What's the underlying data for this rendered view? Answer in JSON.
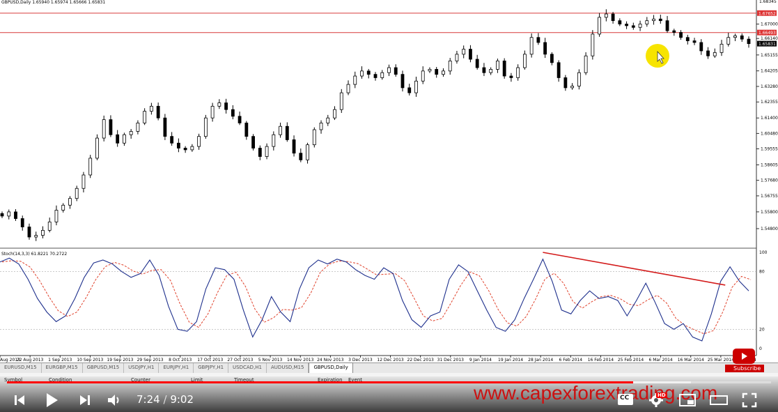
{
  "chart_title": "GBPUSD,Daily  1.65940 1.65974 1.65666 1.65831",
  "indicator_label": "Stoch(14,3,3) 61.8221 70.2722",
  "colors": {
    "bull": "#000000",
    "bear": "#000000",
    "main_line": "#1d2f8c",
    "signal_line": "#e0402a",
    "hline": "#d83a3a",
    "trendline": "#d31b1b",
    "price_tag_red": "#d33",
    "price_tag_current": "#000000",
    "cursor_highlight": "#f7e400"
  },
  "chart_data": {
    "type": "candlestick",
    "ohlc_anchor_closes": [
      1.5555,
      1.558,
      1.554,
      1.549,
      1.543,
      1.544,
      1.547,
      1.552,
      1.559,
      1.562,
      1.566,
      1.572,
      1.58,
      1.59,
      1.602,
      1.613,
      1.604,
      1.599,
      1.604,
      1.606,
      1.611,
      1.618,
      1.621,
      1.614,
      1.603,
      1.599,
      1.596,
      1.595,
      1.597,
      1.603,
      1.614,
      1.621,
      1.623,
      1.619,
      1.615,
      1.611,
      1.603,
      1.596,
      1.591,
      1.597,
      1.604,
      1.609,
      1.601,
      1.593,
      1.589,
      1.598,
      1.607,
      1.611,
      1.614,
      1.619,
      1.629,
      1.634,
      1.639,
      1.642,
      1.64,
      1.638,
      1.641,
      1.644,
      1.64,
      1.632,
      1.629,
      1.636,
      1.642,
      1.643,
      1.64,
      1.642,
      1.648,
      1.652,
      1.655,
      1.649,
      1.644,
      1.641,
      1.643,
      1.648,
      1.639,
      1.638,
      1.644,
      1.652,
      1.662,
      1.659,
      1.652,
      1.647,
      1.638,
      1.632,
      1.633,
      1.641,
      1.651,
      1.664,
      1.674,
      1.676,
      1.672,
      1.67,
      1.669,
      1.668,
      1.67,
      1.672,
      1.673,
      1.672,
      1.666,
      1.665,
      1.662,
      1.66,
      1.659,
      1.654,
      1.651,
      1.653,
      1.658,
      1.662,
      1.663,
      1.661,
      1.6583
    ],
    "price_ticks": [
      "1.67000",
      "1.66140",
      "1.65155",
      "1.64205",
      "1.63280",
      "1.62355",
      "1.61400",
      "1.60480",
      "1.59555",
      "1.58605",
      "1.57680",
      "1.56755",
      "1.55800",
      "1.54800"
    ],
    "price_tag_top": "1.67652",
    "price_tag_mid": "1.66493",
    "price_tag_current": "1.65831",
    "top_edge_label": "1.68345",
    "hlines": [
      1.6765,
      1.6649
    ],
    "date_labels": [
      "Aug 2013",
      "22 Aug 2013",
      "1 Sep 2013",
      "10 Sep 2013",
      "19 Sep 2013",
      "29 Sep 2013",
      "8 Oct 2013",
      "17 Oct 2013",
      "27 Oct 2013",
      "5 Nov 2013",
      "14 Nov 2013",
      "24 Nov 2013",
      "3 Dec 2013",
      "12 Dec 2013",
      "22 Dec 2013",
      "31 Dec 2013",
      "9 Jan 2014",
      "19 Jan 2014",
      "28 Jan 2014",
      "6 Feb 2014",
      "16 Feb 2014",
      "25 Feb 2014",
      "6 Mar 2014",
      "16 Mar 2014",
      "25 Mar 2014",
      "2014"
    ],
    "stoch_ticks": [
      "100",
      "80",
      "20",
      "0"
    ],
    "stoch_main": [
      90,
      94,
      88,
      72,
      52,
      38,
      28,
      34,
      52,
      74,
      89,
      92,
      88,
      80,
      74,
      78,
      92,
      76,
      44,
      20,
      18,
      28,
      62,
      84,
      82,
      72,
      40,
      12,
      30,
      54,
      38,
      28,
      62,
      84,
      92,
      88,
      93,
      90,
      82,
      76,
      72,
      84,
      78,
      50,
      30,
      22,
      34,
      38,
      72,
      87,
      80,
      60,
      40,
      22,
      18,
      30,
      52,
      72,
      93,
      70,
      40,
      36,
      50,
      60,
      52,
      54,
      50,
      34,
      50,
      68,
      48,
      26,
      20,
      26,
      12,
      8,
      36,
      70,
      85,
      70,
      60
    ]
  },
  "tabs": [
    "EURUSD,M15",
    "EURGBP,M15",
    "GBPUSD,M15",
    "USDJPY,H1",
    "EURJPY,H1",
    "GBPJPY,H1",
    "USDCAD,H1",
    "AUDUSD,M15",
    "GBPUSD,Daily"
  ],
  "active_tab": "GBPUSD,Daily",
  "terminal_columns": [
    "Symbol",
    "Condition",
    "Counter",
    "Limit",
    "Timeout",
    "Expiration",
    "Event"
  ],
  "player": {
    "current_time": "7:24",
    "separator": "/",
    "duration": "9:02",
    "played_fraction": 0.8192,
    "loaded_fraction": 0.895,
    "watermark": "www.capexforextrading.com",
    "hd_label": "HD",
    "cc_label": "CC",
    "subscribe_label": "Subscribe"
  },
  "icons": [
    "previous-icon",
    "play-icon",
    "next-icon",
    "volume-icon",
    "captions-icon",
    "settings-icon",
    "miniplayer-icon",
    "theater-icon",
    "fullscreen-icon",
    "youtube-logo-icon",
    "mouse-cursor-icon"
  ]
}
